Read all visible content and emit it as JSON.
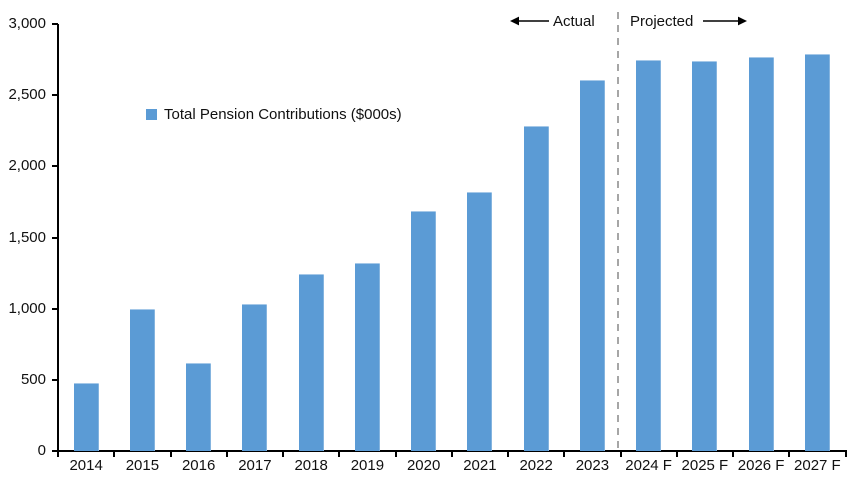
{
  "chart_data": {
    "type": "bar",
    "title": "",
    "legend": "Total Pension Contributions ($000s)",
    "categories": [
      "2014",
      "2015",
      "2016",
      "2017",
      "2018",
      "2019",
      "2020",
      "2021",
      "2022",
      "2023",
      "2024 F",
      "2025 F",
      "2026 F",
      "2027 F"
    ],
    "values": [
      480,
      1000,
      620,
      1030,
      1245,
      1320,
      1685,
      1820,
      2280,
      2610,
      2750,
      2740,
      2765,
      2790
    ],
    "xlabel": "",
    "ylabel": "",
    "ylim": [
      0,
      3000
    ],
    "ytick_step": 500,
    "grid": false,
    "legend_position": "inside-upper-left",
    "bar_color": "#5B9BD5",
    "divider_after_category": "2023",
    "divider_color": "#A6A6A6",
    "annotations": {
      "actual_label": "Actual",
      "projected_label": "Projected"
    }
  }
}
